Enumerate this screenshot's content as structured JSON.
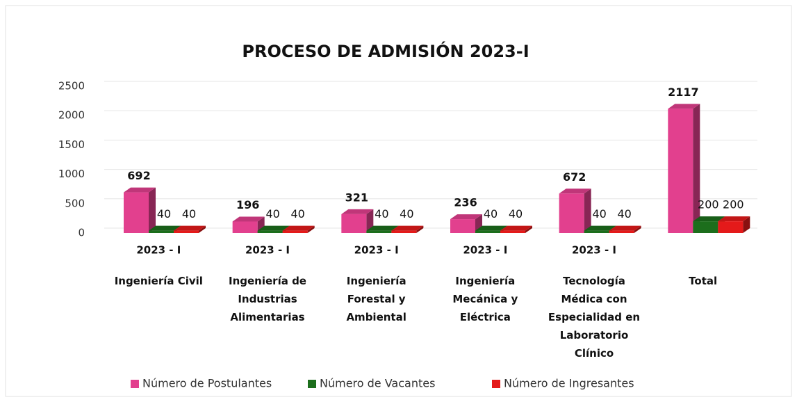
{
  "chart_data": {
    "type": "bar3d",
    "title": "PROCESO DE ADMISIÓN 2023-I",
    "categories": [
      "Ingeniería Civil",
      "Ingeniería de Industrias Alimentarias",
      "Ingeniería Forestal y Ambiental",
      "Ingeniería Mecánica y Eléctrica",
      "Tecnología Médica con Especialidad en Laboratorio Clínico",
      "Total"
    ],
    "periods": [
      "2023 - I",
      "2023 - I",
      "2023 - I",
      "2023 - I",
      "2023 - I",
      null
    ],
    "series": [
      {
        "name": "Número de Postulantes",
        "color": "#e2408e",
        "values": [
          692,
          196,
          321,
          236,
          672,
          2117
        ]
      },
      {
        "name": "Número de Vacantes",
        "color": "#1c6e1c",
        "values": [
          40,
          40,
          40,
          40,
          40,
          200
        ]
      },
      {
        "name": "Número de Ingresantes",
        "color": "#e41a1a",
        "values": [
          40,
          40,
          40,
          40,
          40,
          200
        ]
      }
    ],
    "ylim": [
      0,
      2500
    ],
    "yticks": [
      0,
      500,
      1000,
      1500,
      2000,
      2500
    ],
    "grid": true,
    "legend": "bottom"
  }
}
